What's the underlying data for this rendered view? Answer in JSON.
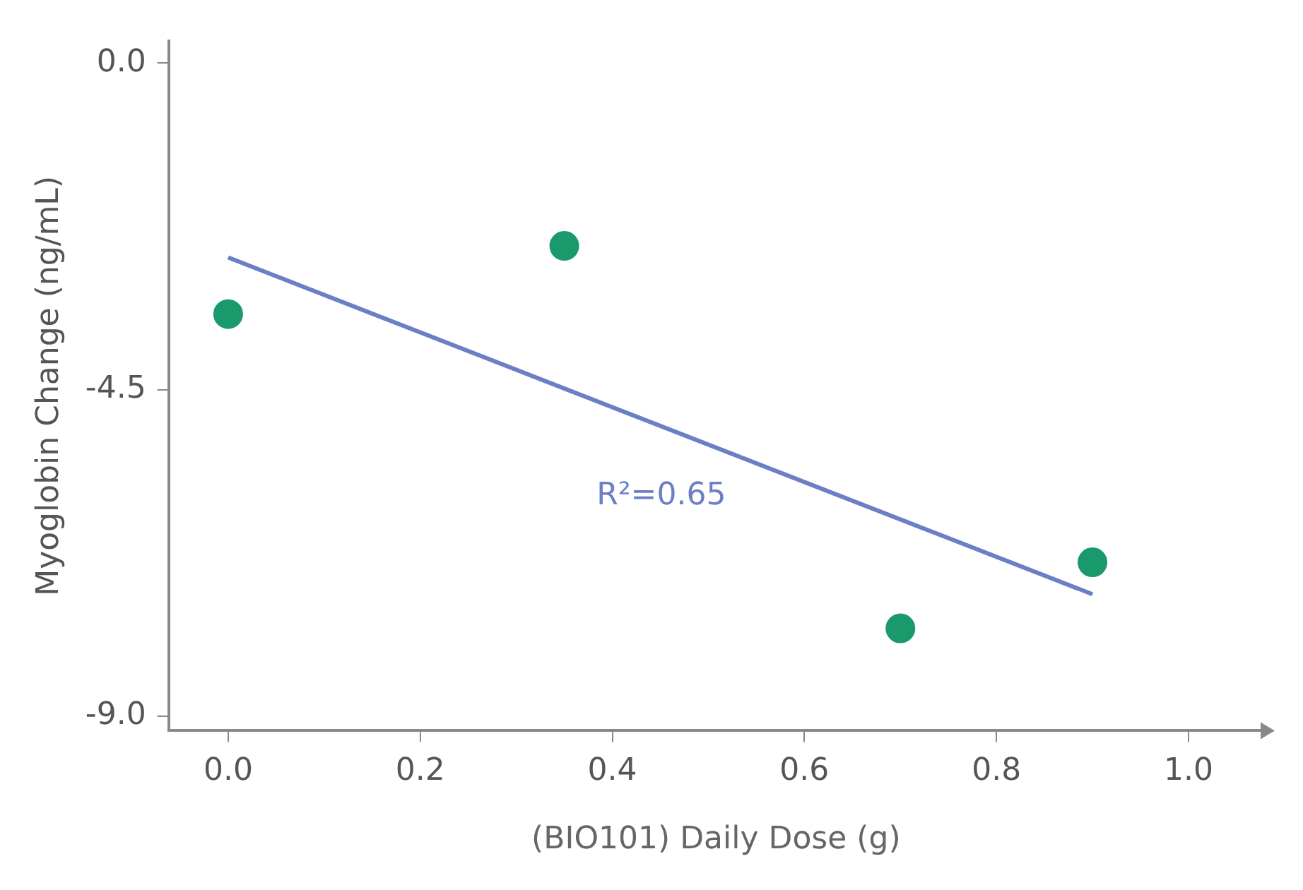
{
  "chart_data": {
    "type": "scatter",
    "xlabel": "(BIO101) Daily Dose (g)",
    "ylabel": "Myoglobin Change (ng/mL)",
    "xlim": [
      -0.062,
      1.078
    ],
    "ylim": [
      -9.2,
      0.3
    ],
    "xticks": [
      {
        "value": 0,
        "label": "0.0"
      },
      0.2,
      0.4,
      0.6,
      0.8,
      {
        "value": 1,
        "label": "1.0"
      }
    ],
    "yticks": [
      {
        "value": 0,
        "label": "0.0"
      },
      -4.5,
      {
        "value": -9,
        "label": "-9.0"
      }
    ],
    "grid": false,
    "legend": false,
    "marker": "circle",
    "series": [
      {
        "color": "#1a9a6c",
        "x": [
          0,
          0.35,
          0.7,
          0.9
        ],
        "values": [
          -3.46,
          -2.52,
          -7.79,
          -6.88
        ]
      },
      {
        "type": "line",
        "color": "#6b7fc4",
        "x": [
          0,
          0.9
        ],
        "values": [
          -2.68,
          -7.32
        ],
        "marker": "none",
        "line_style": "solid"
      }
    ],
    "annotations": [
      "R²=0.65"
    ]
  }
}
